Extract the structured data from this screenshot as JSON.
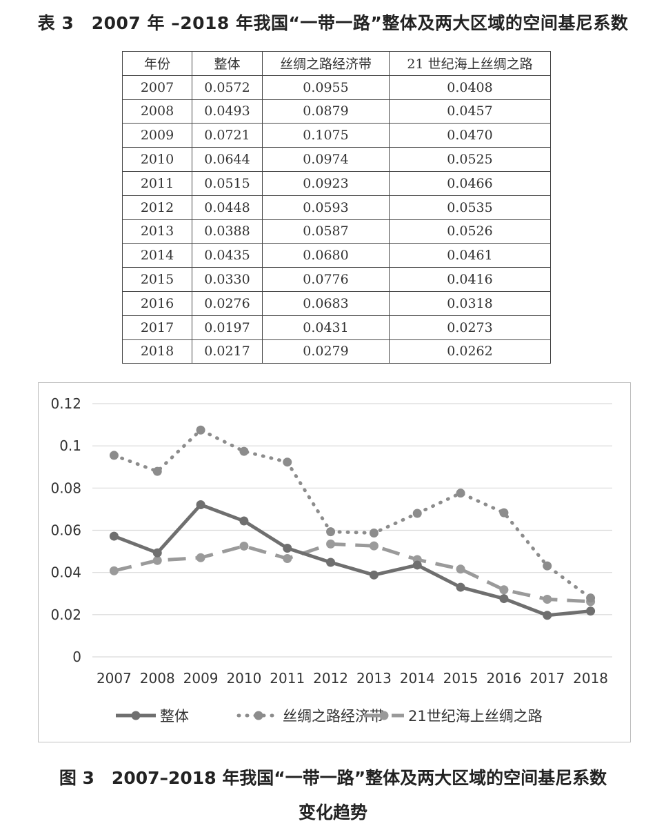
{
  "table": {
    "title": "表 3　2007 年 –2018 年我国“一带一路”整体及两大区域的空间基尼系数",
    "headers": [
      "年份",
      "整体",
      "丝绸之路经济带",
      "21 世纪海上丝绸之路"
    ],
    "rows": [
      [
        "2007",
        "0.0572",
        "0.0955",
        "0.0408"
      ],
      [
        "2008",
        "0.0493",
        "0.0879",
        "0.0457"
      ],
      [
        "2009",
        "0.0721",
        "0.1075",
        "0.0470"
      ],
      [
        "2010",
        "0.0644",
        "0.0974",
        "0.0525"
      ],
      [
        "2011",
        "0.0515",
        "0.0923",
        "0.0466"
      ],
      [
        "2012",
        "0.0448",
        "0.0593",
        "0.0535"
      ],
      [
        "2013",
        "0.0388",
        "0.0587",
        "0.0526"
      ],
      [
        "2014",
        "0.0435",
        "0.0680",
        "0.0461"
      ],
      [
        "2015",
        "0.0330",
        "0.0776",
        "0.0416"
      ],
      [
        "2016",
        "0.0276",
        "0.0683",
        "0.0318"
      ],
      [
        "2017",
        "0.0197",
        "0.0431",
        "0.0273"
      ],
      [
        "2018",
        "0.0217",
        "0.0279",
        "0.0262"
      ]
    ]
  },
  "figure": {
    "title_line1": "图 3　2007–2018 年我国“一带一路”整体及两大区域的空间基尼系数",
    "title_line2": "变化趋势"
  },
  "chart_data": {
    "type": "line",
    "categories": [
      "2007",
      "2008",
      "2009",
      "2010",
      "2011",
      "2012",
      "2013",
      "2014",
      "2015",
      "2016",
      "2017",
      "2018"
    ],
    "ylim": [
      0,
      0.12
    ],
    "yticks": [
      "0",
      "0.02",
      "0.04",
      "0.06",
      "0.08",
      "0.1",
      "0.12"
    ],
    "grid": true,
    "legend": "bottom",
    "series": [
      {
        "name": "整体",
        "style": "solid",
        "color": "#6f6f6f",
        "values": [
          0.0572,
          0.0493,
          0.0721,
          0.0644,
          0.0515,
          0.0448,
          0.0388,
          0.0435,
          0.033,
          0.0276,
          0.0197,
          0.0217
        ]
      },
      {
        "name": "丝绸之路经济带",
        "style": "dotted",
        "color": "#8c8c8c",
        "values": [
          0.0955,
          0.0879,
          0.1075,
          0.0974,
          0.0923,
          0.0593,
          0.0587,
          0.068,
          0.0776,
          0.0683,
          0.0431,
          0.0279
        ]
      },
      {
        "name": "21世纪海上丝绸之路",
        "style": "dashed",
        "color": "#9a9a9a",
        "values": [
          0.0408,
          0.0457,
          0.047,
          0.0525,
          0.0466,
          0.0535,
          0.0526,
          0.0461,
          0.0416,
          0.0318,
          0.0273,
          0.0262
        ]
      }
    ]
  }
}
